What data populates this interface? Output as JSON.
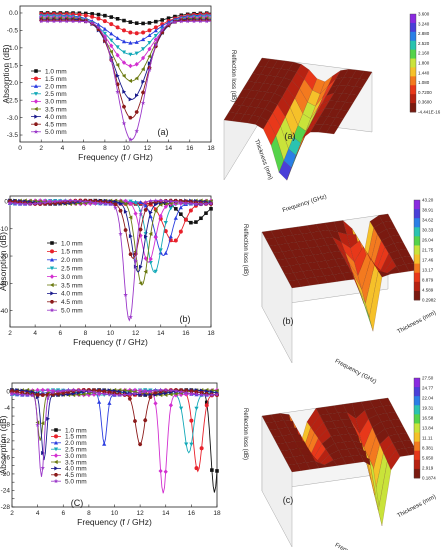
{
  "chart_data": [
    {
      "type": "line",
      "panel_label": "(a)",
      "xlabel": "Frequency (f / GHz)",
      "ylabel": "Absorption (dB)",
      "xlim": [
        0,
        18
      ],
      "ylim": [
        -3.7,
        0.2
      ],
      "xticks": [
        "0",
        "2",
        "4",
        "6",
        "8",
        "10",
        "12",
        "14",
        "16",
        "18"
      ],
      "yticks": [
        "0.0",
        "-0.5",
        "-1.0",
        "-1.5",
        "-2.0",
        "-2.5",
        "-3.0",
        "-3.5"
      ],
      "yvals": [
        0,
        -0.5,
        -1,
        -1.5,
        -2,
        -2.5,
        -3,
        -3.5
      ],
      "series": [
        {
          "name": "1.0 mm",
          "color": "#111111",
          "marker": "square",
          "f0": 11.5,
          "d": -0.3,
          "w": 3.0
        },
        {
          "name": "1.5 mm",
          "color": "#e8202a",
          "marker": "circle",
          "f0": 11.0,
          "d": -0.55,
          "w": 3.0
        },
        {
          "name": "2.0 mm",
          "color": "#2a3ce0",
          "marker": "triangle",
          "f0": 10.5,
          "d": -0.8,
          "w": 3.0
        },
        {
          "name": "2.5 mm",
          "color": "#13a9b8",
          "marker": "triangle-down",
          "f0": 10.5,
          "d": -1.1,
          "w": 2.8
        },
        {
          "name": "3.0 mm",
          "color": "#d22fd0",
          "marker": "diamond",
          "f0": 10.5,
          "d": -1.4,
          "w": 2.6
        },
        {
          "name": "3.5 mm",
          "color": "#6b7a10",
          "marker": "triangle-left",
          "f0": 10.5,
          "d": -1.8,
          "w": 2.4
        },
        {
          "name": "4.0 mm",
          "color": "#1a1a8c",
          "marker": "triangle-right",
          "f0": 10.5,
          "d": -2.3,
          "w": 2.2
        },
        {
          "name": "4.5 mm",
          "color": "#8b1a1a",
          "marker": "hexagon",
          "f0": 10.5,
          "d": -2.8,
          "w": 2.0
        },
        {
          "name": "5.0 mm",
          "color": "#9b38c9",
          "marker": "star",
          "f0": 10.5,
          "d": -3.4,
          "w": 1.8
        }
      ]
    },
    {
      "type": "line",
      "panel_label": "(b)",
      "xlabel": "Frequency (f / GHz)",
      "ylabel": "Absorption (dB)",
      "xlim": [
        2,
        18
      ],
      "ylim": [
        -46,
        2
      ],
      "xticks": [
        "2",
        "4",
        "6",
        "8",
        "10",
        "12",
        "14",
        "16",
        "18"
      ],
      "yticks": [
        "0",
        "-10",
        "-20",
        "-30",
        "-40"
      ],
      "yvals": [
        0,
        -10,
        -20,
        -30,
        -40
      ],
      "series": [
        {
          "name": "1.0 mm",
          "color": "#111111",
          "marker": "square",
          "f0": 16.5,
          "d": -8,
          "w": 1.3
        },
        {
          "name": "1.5 mm",
          "color": "#e8202a",
          "marker": "circle",
          "f0": 15.0,
          "d": -15,
          "w": 1.1
        },
        {
          "name": "2.0 mm",
          "color": "#2a3ce0",
          "marker": "triangle",
          "f0": 14.2,
          "d": -20,
          "w": 0.9
        },
        {
          "name": "2.5 mm",
          "color": "#13a9b8",
          "marker": "triangle-down",
          "f0": 13.5,
          "d": -26,
          "w": 0.8
        },
        {
          "name": "3.0 mm",
          "color": "#d22fd0",
          "marker": "diamond",
          "f0": 13.0,
          "d": -22,
          "w": 0.8
        },
        {
          "name": "3.5 mm",
          "color": "#6b7a10",
          "marker": "triangle-left",
          "f0": 12.5,
          "d": -30,
          "w": 0.7
        },
        {
          "name": "4.0 mm",
          "color": "#1a1a8c",
          "marker": "triangle-right",
          "f0": 12.2,
          "d": -25,
          "w": 0.7
        },
        {
          "name": "4.5 mm",
          "color": "#8b1a1a",
          "marker": "hexagon",
          "f0": 11.8,
          "d": -20,
          "w": 0.7
        },
        {
          "name": "5.0 mm",
          "color": "#9b38c9",
          "marker": "star",
          "f0": 11.5,
          "d": -43,
          "w": 0.6
        }
      ]
    },
    {
      "type": "line",
      "panel_label": "(C)",
      "xlabel": "Frequency (f / GHz)",
      "ylabel": "Absorption (dB)",
      "xlim": [
        2,
        18
      ],
      "ylim": [
        -28,
        2
      ],
      "xticks": [
        "2",
        "4",
        "6",
        "8",
        "10",
        "12",
        "14",
        "16",
        "18"
      ],
      "yticks": [
        "0",
        "-2",
        "-4",
        "-6",
        "-8",
        "-10",
        "-12",
        "-14",
        "-16",
        "-18",
        "-20",
        "-22",
        "-24",
        "-26",
        "-28"
      ],
      "yvals": [
        0,
        -2,
        -4,
        -6,
        -8,
        -10,
        -12,
        -14,
        -16,
        -18,
        -20,
        -22,
        -24,
        -26,
        -28
      ],
      "series": [
        {
          "name": "1.0 mm",
          "color": "#111111",
          "marker": "square",
          "f0": 17.8,
          "d": -24,
          "w": 0.4
        },
        {
          "name": "1.5 mm",
          "color": "#e8202a",
          "marker": "circle",
          "f0": 16.5,
          "d": -19,
          "w": 0.5
        },
        {
          "name": "2.0 mm",
          "color": "#2a3ce0",
          "marker": "triangle",
          "f0": 9.2,
          "d": -12,
          "w": 0.3
        },
        {
          "name": "2.5 mm",
          "color": "#13a9b8",
          "marker": "triangle-down",
          "f0": 15.8,
          "d": -14,
          "w": 0.5
        },
        {
          "name": "3.0 mm",
          "color": "#d22fd0",
          "marker": "diamond",
          "f0": 13.8,
          "d": -24,
          "w": 0.4
        },
        {
          "name": "3.5 mm",
          "color": "#6b7a10",
          "marker": "triangle-left",
          "f0": 4.2,
          "d": -12,
          "w": 0.3
        },
        {
          "name": "4.0 mm",
          "color": "#1a1a8c",
          "marker": "triangle-right",
          "f0": 4.5,
          "d": -16,
          "w": 0.3
        },
        {
          "name": "4.5 mm",
          "color": "#8b1a1a",
          "marker": "hexagon",
          "f0": 12.0,
          "d": -12,
          "w": 0.5
        },
        {
          "name": "5.0 mm",
          "color": "#9b38c9",
          "marker": "star",
          "f0": 4.3,
          "d": -20,
          "w": 0.3
        }
      ]
    },
    {
      "type": "surface",
      "panel_label": "(a)",
      "xlabel": "Frequency (GHz)",
      "ylabel": "Thickness (mm)",
      "zlabel": "Reflection loss (dB)",
      "colorbar_ticks": [
        "3.600",
        "3.240",
        "2.880",
        "2.520",
        "2.160",
        "1.800",
        "1.440",
        "1.080",
        "0.7200",
        "0.3600",
        "-4.441E-16"
      ]
    },
    {
      "type": "surface",
      "panel_label": "(b)",
      "xlabel": "Frequency (GHz)",
      "ylabel": "Thickness (mm)",
      "zlabel": "Reflection loss (dB)",
      "colorbar_ticks": [
        "43.20",
        "38.91",
        "34.62",
        "30.33",
        "26.04",
        "21.75",
        "17.46",
        "13.17",
        "8.879",
        "4.589",
        "0.2982"
      ]
    },
    {
      "type": "surface",
      "panel_label": "(c)",
      "xlabel": "Frequency (GHz)",
      "ylabel": "Thickness (mm)",
      "zlabel": "Reflection loss (dB)",
      "colorbar_ticks": [
        "27.50",
        "24.77",
        "22.04",
        "19.31",
        "16.58",
        "13.84",
        "11.11",
        "8.381",
        "5.650",
        "2.919",
        "0.1874"
      ]
    }
  ]
}
